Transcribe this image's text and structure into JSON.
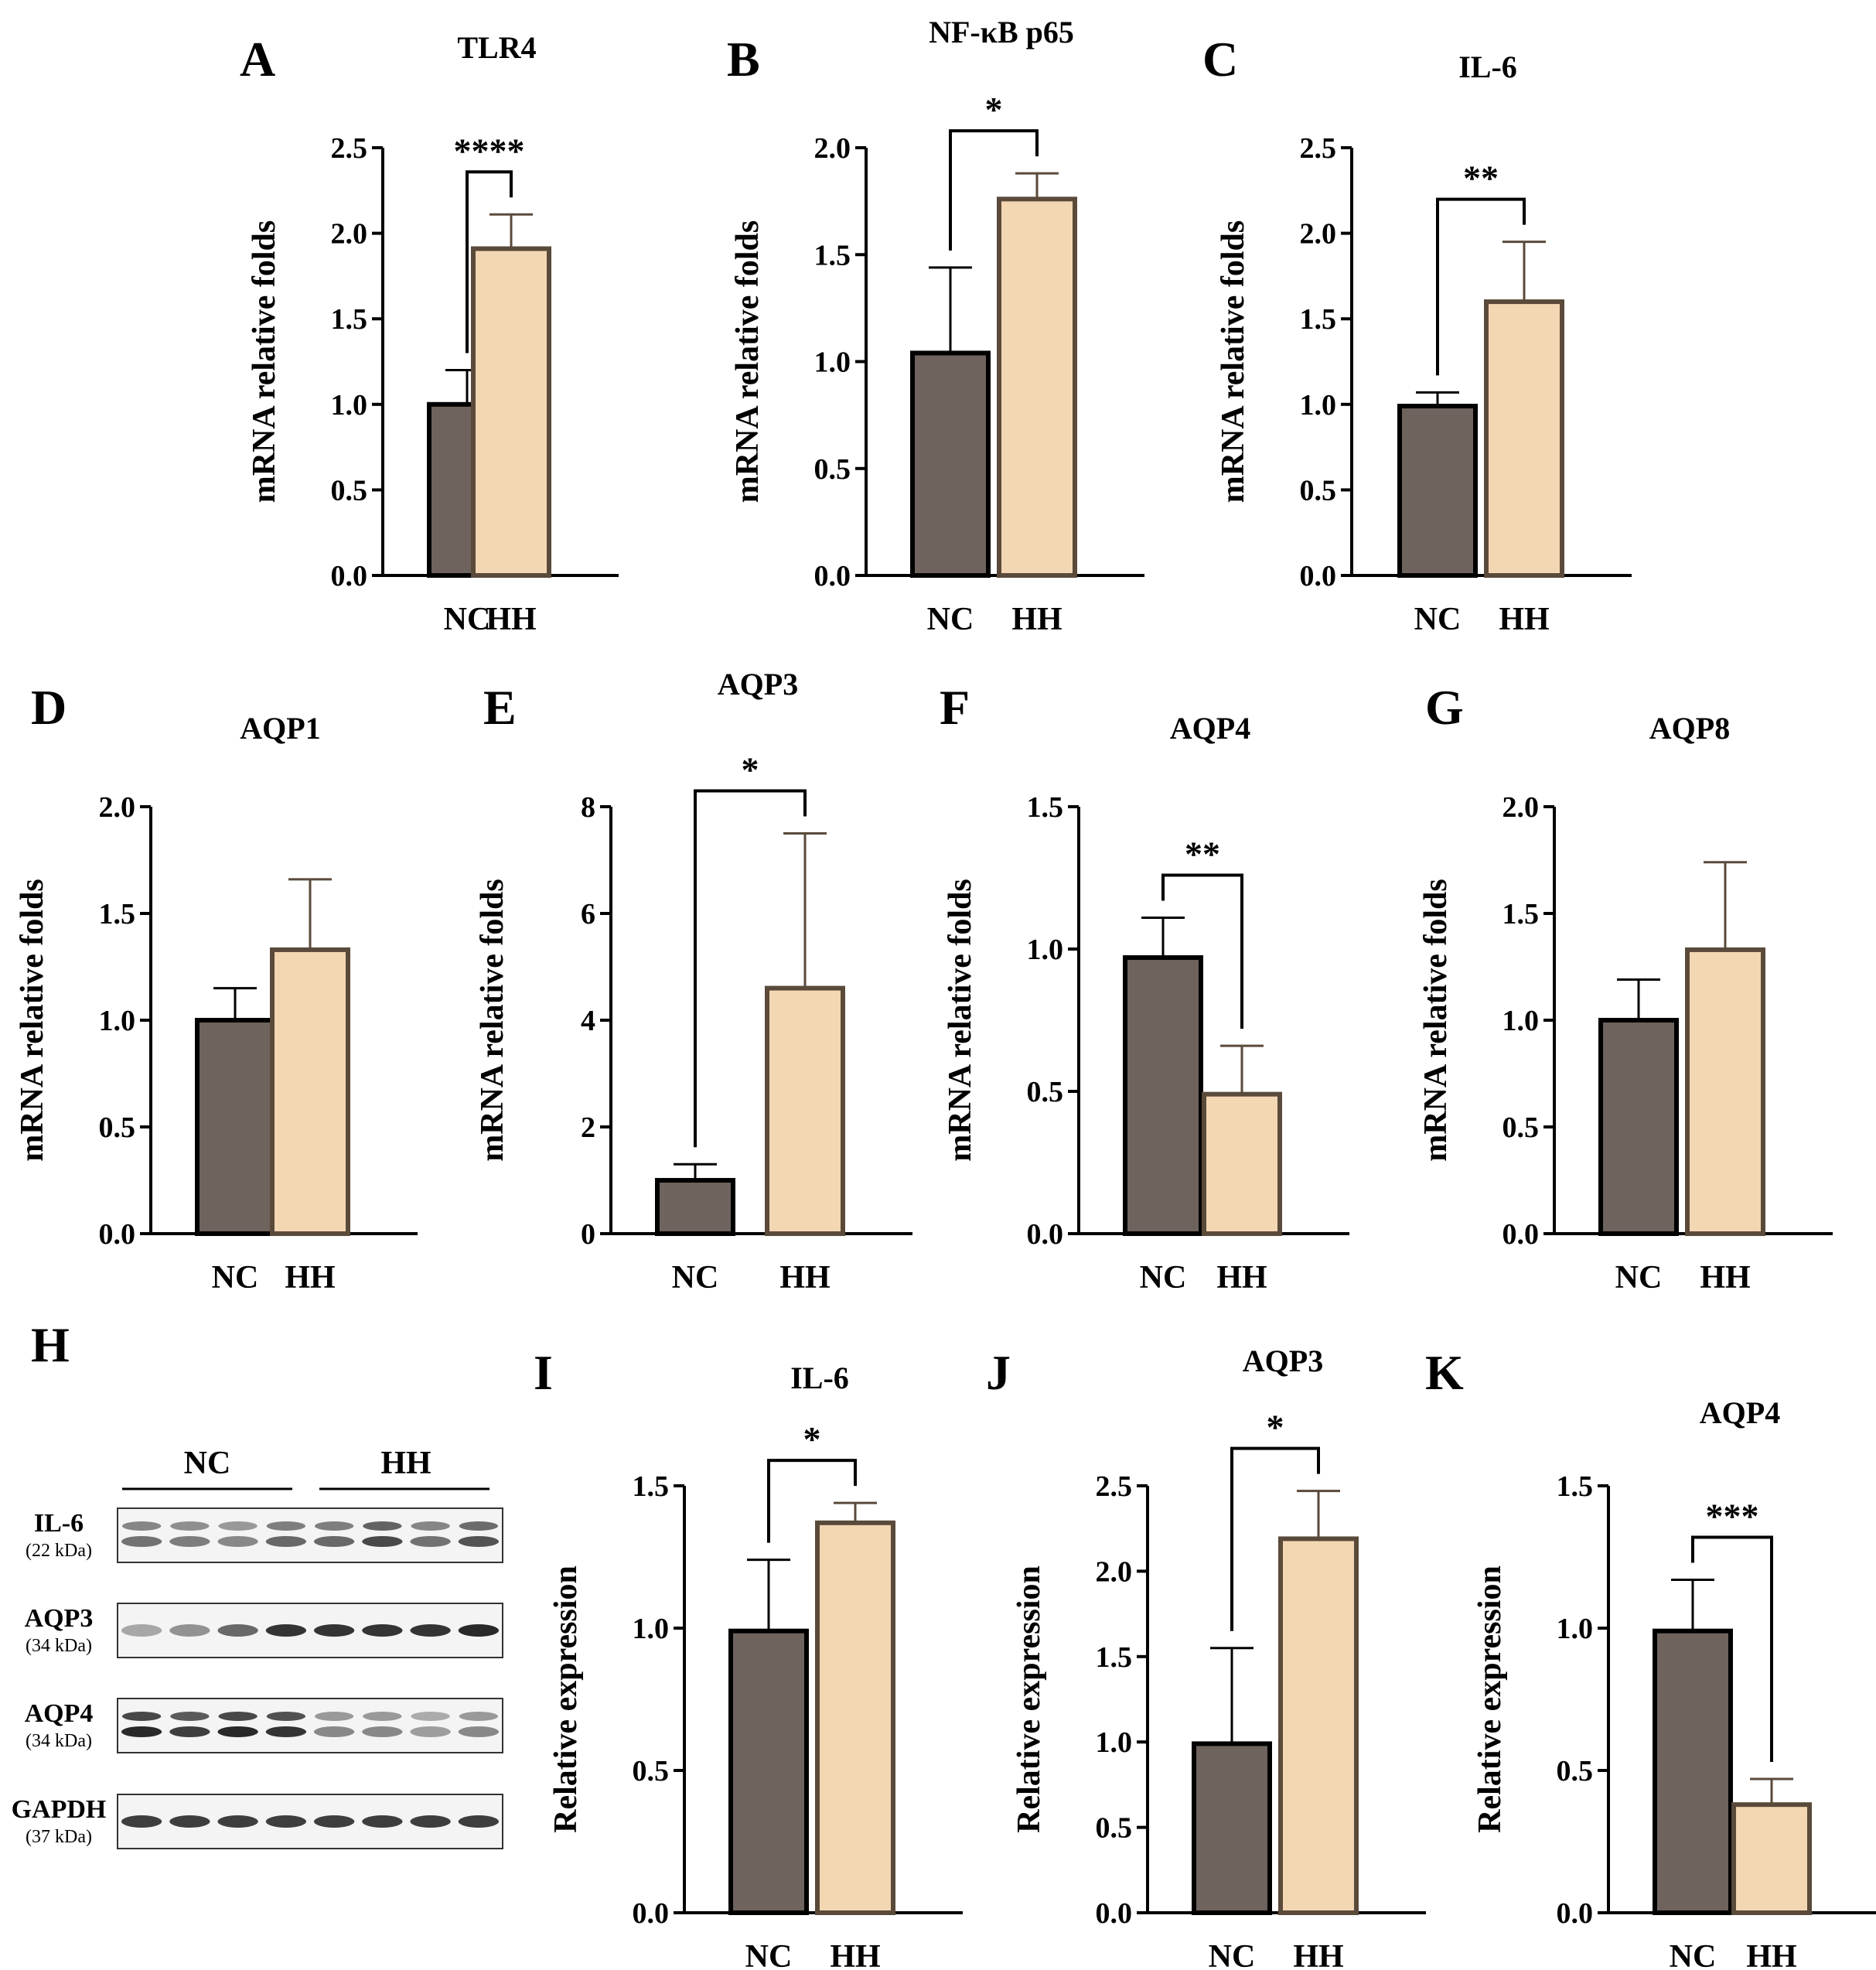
{
  "panel_letters": [
    "A",
    "B",
    "C",
    "D",
    "E",
    "F",
    "G",
    "H",
    "I",
    "J",
    "K"
  ],
  "chart_data": [
    {
      "panel": "A",
      "type": "bar",
      "title": "TLR4",
      "ylabel": "mRNA relative folds",
      "ylim": [
        0,
        2.5
      ],
      "yticks": [
        "0.0",
        "0.5",
        "1.0",
        "1.5",
        "2.0",
        "2.5"
      ],
      "categories": [
        "NC",
        "HH"
      ],
      "values": [
        1.0,
        1.91
      ],
      "errors": [
        0.2,
        0.2
      ],
      "colors": [
        "#6e635d",
        "#f3d7b3"
      ],
      "significance": "****"
    },
    {
      "panel": "B",
      "type": "bar",
      "title": "NF-κB p65",
      "ylabel": "mRNA relative folds",
      "ylim": [
        0,
        2.0
      ],
      "yticks": [
        "0.0",
        "0.5",
        "1.0",
        "1.5",
        "2.0"
      ],
      "categories": [
        "NC",
        "HH"
      ],
      "values": [
        1.04,
        1.76
      ],
      "errors": [
        0.4,
        0.12
      ],
      "colors": [
        "#6e635d",
        "#f3d7b3"
      ],
      "significance": "*"
    },
    {
      "panel": "C",
      "type": "bar",
      "title": "IL-6",
      "ylabel": "mRNA relative folds",
      "ylim": [
        0,
        2.5
      ],
      "yticks": [
        "0.0",
        "0.5",
        "1.0",
        "1.5",
        "2.0",
        "2.5"
      ],
      "categories": [
        "NC",
        "HH"
      ],
      "values": [
        0.99,
        1.6
      ],
      "errors": [
        0.08,
        0.35
      ],
      "colors": [
        "#6e635d",
        "#f3d7b3"
      ],
      "significance": "**"
    },
    {
      "panel": "D",
      "type": "bar",
      "title": "AQP1",
      "ylabel": "mRNA relative folds",
      "ylim": [
        0,
        2.0
      ],
      "yticks": [
        "0.0",
        "0.5",
        "1.0",
        "1.5",
        "2.0"
      ],
      "categories": [
        "NC",
        "HH"
      ],
      "values": [
        1.0,
        1.33
      ],
      "errors": [
        0.15,
        0.33
      ],
      "colors": [
        "#6e635d",
        "#f3d7b3"
      ],
      "significance": ""
    },
    {
      "panel": "E",
      "type": "bar",
      "title": "AQP3",
      "ylabel": "mRNA relative folds",
      "ylim": [
        0,
        8
      ],
      "yticks": [
        "0",
        "2",
        "4",
        "6",
        "8"
      ],
      "categories": [
        "NC",
        "HH"
      ],
      "values": [
        1.0,
        4.6
      ],
      "errors": [
        0.3,
        2.9
      ],
      "colors": [
        "#6e635d",
        "#f3d7b3"
      ],
      "significance": "*"
    },
    {
      "panel": "F",
      "type": "bar",
      "title": "AQP4",
      "ylabel": "mRNA relative folds",
      "ylim": [
        0,
        1.5
      ],
      "yticks": [
        "0.0",
        "0.5",
        "1.0",
        "1.5"
      ],
      "categories": [
        "NC",
        "HH"
      ],
      "values": [
        0.97,
        0.49
      ],
      "errors": [
        0.14,
        0.17
      ],
      "colors": [
        "#6e635d",
        "#f3d7b3"
      ],
      "significance": "**"
    },
    {
      "panel": "G",
      "type": "bar",
      "title": "AQP8",
      "ylabel": "mRNA relative folds",
      "ylim": [
        0,
        2.0
      ],
      "yticks": [
        "0.0",
        "0.5",
        "1.0",
        "1.5",
        "2.0"
      ],
      "categories": [
        "NC",
        "HH"
      ],
      "values": [
        1.0,
        1.33
      ],
      "errors": [
        0.19,
        0.41
      ],
      "colors": [
        "#6e635d",
        "#f3d7b3"
      ],
      "significance": ""
    },
    {
      "panel": "I",
      "type": "bar",
      "title": "IL-6",
      "ylabel": "Relative expression",
      "ylim": [
        0,
        1.5
      ],
      "yticks": [
        "0.0",
        "0.5",
        "1.0",
        "1.5"
      ],
      "categories": [
        "NC",
        "HH"
      ],
      "values": [
        0.99,
        1.37
      ],
      "errors": [
        0.25,
        0.07
      ],
      "colors": [
        "#6e635d",
        "#f3d7b3"
      ],
      "significance": "*"
    },
    {
      "panel": "J",
      "type": "bar",
      "title": "AQP3",
      "ylabel": "Relative expression",
      "ylim": [
        0,
        2.5
      ],
      "yticks": [
        "0.0",
        "0.5",
        "1.0",
        "1.5",
        "2.0",
        "2.5"
      ],
      "categories": [
        "NC",
        "HH"
      ],
      "values": [
        0.99,
        2.19
      ],
      "errors": [
        0.56,
        0.28
      ],
      "colors": [
        "#6e635d",
        "#f3d7b3"
      ],
      "significance": "*"
    },
    {
      "panel": "K",
      "type": "bar",
      "title": "AQP4",
      "ylabel": "Relative expression",
      "ylim": [
        0,
        1.5
      ],
      "yticks": [
        "0.0",
        "0.5",
        "1.0",
        "1.5"
      ],
      "categories": [
        "NC",
        "HH"
      ],
      "values": [
        0.99,
        0.38
      ],
      "errors": [
        0.18,
        0.09
      ],
      "colors": [
        "#6e635d",
        "#f3d7b3"
      ],
      "significance": "***"
    }
  ],
  "blot": {
    "panel": "H",
    "groups": [
      "NC",
      "HH"
    ],
    "rows": [
      {
        "name": "IL-6",
        "kda": "(22 kDa)",
        "bands": [
          0.55,
          0.5,
          0.45,
          0.6,
          0.6,
          0.75,
          0.55,
          0.7
        ],
        "double": true
      },
      {
        "name": "AQP3",
        "kda": "(34 kDa)",
        "bands": [
          0.3,
          0.4,
          0.6,
          0.85,
          0.85,
          0.85,
          0.85,
          0.9
        ],
        "double": false
      },
      {
        "name": "AQP4",
        "kda": "(34 kDa)",
        "bands": [
          0.9,
          0.8,
          0.9,
          0.85,
          0.45,
          0.45,
          0.35,
          0.45
        ],
        "double": true
      },
      {
        "name": "GAPDH",
        "kda": "(37 kDa)",
        "bands": [
          0.8,
          0.8,
          0.8,
          0.8,
          0.8,
          0.8,
          0.8,
          0.8
        ],
        "double": false
      }
    ]
  }
}
